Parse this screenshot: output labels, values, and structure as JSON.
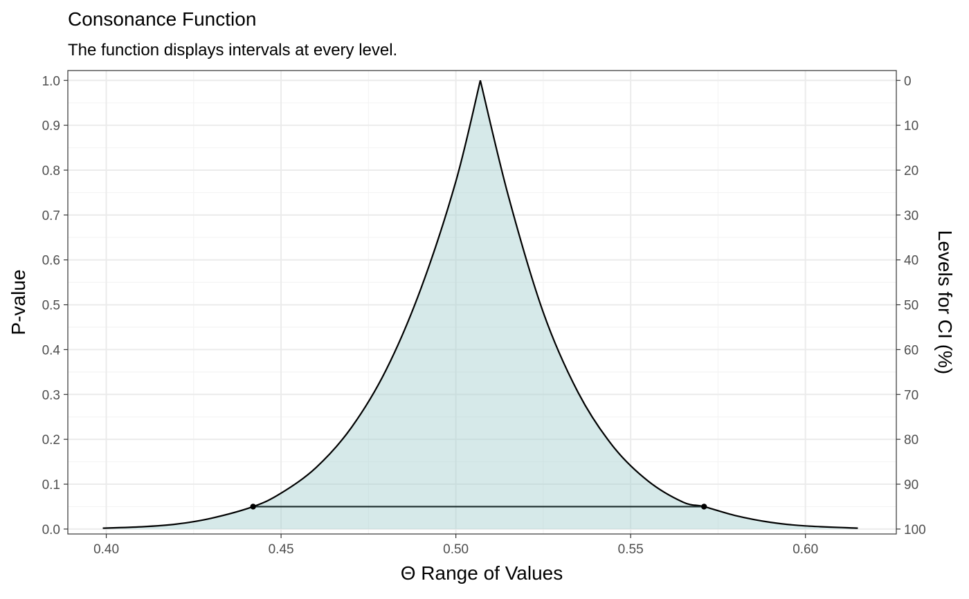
{
  "chart_data": {
    "type": "area",
    "title": "Consonance Function",
    "subtitle": "The function displays intervals at every level.",
    "xlabel": "Θ Range of Values",
    "ylabel": "P-value",
    "y2label": "Levels for CI (%)",
    "xlim": [
      0.389,
      0.626
    ],
    "ylim": [
      -0.011,
      1.022
    ],
    "x_ticks": [
      {
        "value": 0.4,
        "label": "0.40"
      },
      {
        "value": 0.45,
        "label": "0.45"
      },
      {
        "value": 0.5,
        "label": "0.50"
      },
      {
        "value": 0.55,
        "label": "0.55"
      },
      {
        "value": 0.6,
        "label": "0.60"
      }
    ],
    "y_ticks": [
      {
        "value": 0.0,
        "label": "0.0"
      },
      {
        "value": 0.1,
        "label": "0.1"
      },
      {
        "value": 0.2,
        "label": "0.2"
      },
      {
        "value": 0.3,
        "label": "0.3"
      },
      {
        "value": 0.4,
        "label": "0.4"
      },
      {
        "value": 0.5,
        "label": "0.5"
      },
      {
        "value": 0.6,
        "label": "0.6"
      },
      {
        "value": 0.7,
        "label": "0.7"
      },
      {
        "value": 0.8,
        "label": "0.8"
      },
      {
        "value": 0.9,
        "label": "0.9"
      },
      {
        "value": 1.0,
        "label": "1.0"
      }
    ],
    "y2_ticks": [
      {
        "value": 1.0,
        "label": "0"
      },
      {
        "value": 0.9,
        "label": "10"
      },
      {
        "value": 0.8,
        "label": "20"
      },
      {
        "value": 0.7,
        "label": "30"
      },
      {
        "value": 0.6,
        "label": "40"
      },
      {
        "value": 0.5,
        "label": "50"
      },
      {
        "value": 0.4,
        "label": "60"
      },
      {
        "value": 0.3,
        "label": "70"
      },
      {
        "value": 0.2,
        "label": "80"
      },
      {
        "value": 0.1,
        "label": "90"
      },
      {
        "value": 0.0,
        "label": "100"
      }
    ],
    "grid": true,
    "curve": {
      "x": [
        0.399,
        0.41,
        0.42,
        0.43,
        0.442,
        0.45,
        0.46,
        0.47,
        0.48,
        0.49,
        0.5,
        0.507,
        0.515,
        0.525,
        0.535,
        0.545,
        0.555,
        0.565,
        0.571,
        0.58,
        0.59,
        0.6,
        0.615
      ],
      "y": [
        0.002,
        0.005,
        0.011,
        0.024,
        0.05,
        0.08,
        0.137,
        0.225,
        0.354,
        0.536,
        0.775,
        1.0,
        0.743,
        0.483,
        0.304,
        0.184,
        0.107,
        0.06,
        0.05,
        0.03,
        0.015,
        0.007,
        0.002
      ],
      "fill_color": "#a5cfcf",
      "line_color": "#000000"
    },
    "interval": {
      "x_low": 0.442,
      "x_high": 0.571,
      "y": 0.05
    }
  }
}
